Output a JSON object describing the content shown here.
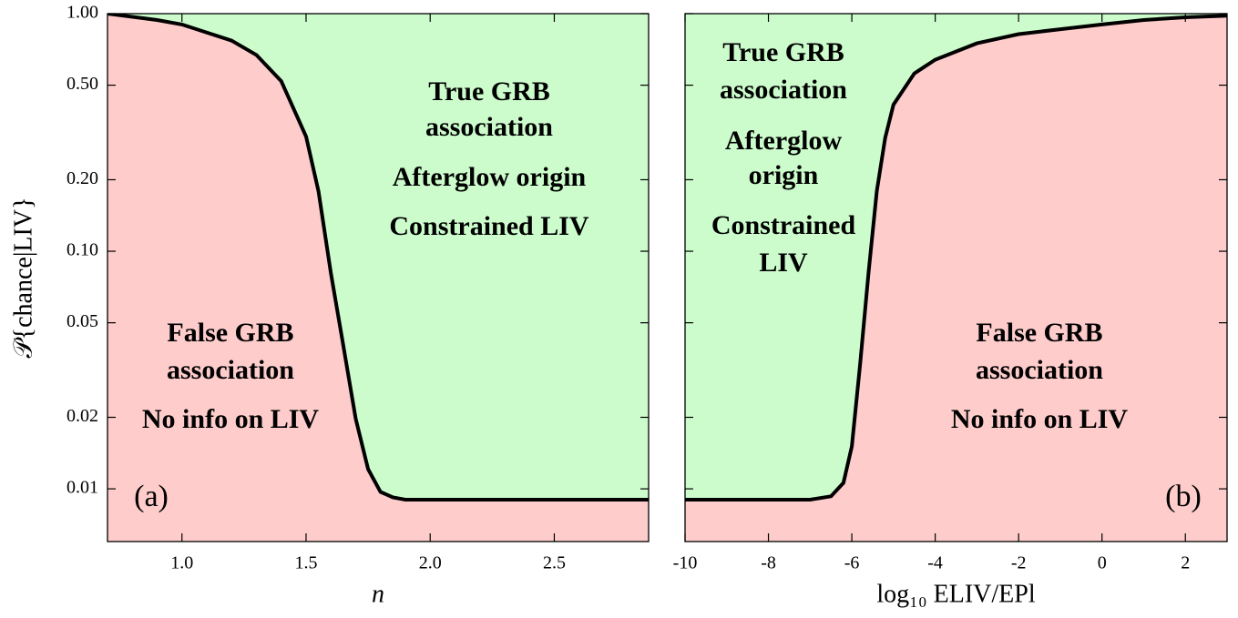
{
  "chart_data": [
    {
      "type": "line",
      "panel_label": "(a)",
      "y_label": "𝒫{chance|LIV}",
      "x_label": "n",
      "log_y": true,
      "xlim": [
        0.7,
        2.88
      ],
      "ylim": [
        0.006,
        1
      ],
      "xticks": [
        {
          "value": 1.0,
          "label": "1.0"
        },
        1.5,
        {
          "value": 2.0,
          "label": "2.0"
        },
        2.5
      ],
      "yticks": [
        0.01,
        0.02,
        0.05,
        {
          "value": 0.1,
          "label": "0.10"
        },
        {
          "value": 0.2,
          "label": "0.20"
        },
        {
          "value": 0.5,
          "label": "0.50"
        },
        {
          "value": 1,
          "label": "1.00"
        }
      ],
      "fill_above": "#ccfccc",
      "fill_below": "#fdcccb",
      "series": [
        {
          "color": "#000000",
          "x": [
            0.7,
            0.9,
            1.0,
            1.2,
            1.3,
            1.4,
            1.5,
            1.55,
            1.6,
            1.65,
            1.7,
            1.75,
            1.8,
            1.85,
            1.9,
            2.2,
            2.88
          ],
          "values": [
            1.0,
            0.94,
            0.9,
            0.77,
            0.67,
            0.52,
            0.304,
            0.179,
            0.081,
            0.04,
            0.0197,
            0.0121,
            0.0097,
            0.0092,
            0.009,
            0.009,
            0.009
          ]
        }
      ],
      "annotations": [
        {
          "lines": [
            "True GRB",
            "association",
            "Afterglow origin",
            "Constrained LIV"
          ]
        },
        {
          "lines": [
            "False GRB",
            "association",
            "No info on LIV"
          ]
        }
      ]
    },
    {
      "type": "line",
      "panel_label": "(b)",
      "x_label": "log₁₀ ELIV/EPl",
      "log_y": true,
      "xlim": [
        -10,
        3
      ],
      "ylim": [
        0.006,
        1
      ],
      "xticks": [
        -10,
        -8,
        -6,
        -4,
        -2,
        0,
        2
      ],
      "yticks": [
        0.01,
        0.02,
        0.05,
        0.1,
        0.2,
        0.5,
        1
      ],
      "fill_above": "#ccfccc",
      "fill_below": "#fdcccb",
      "series": [
        {
          "color": "#000000",
          "x": [
            -10,
            -7,
            -6.5,
            -6.2,
            -6,
            -5.8,
            -5.6,
            -5.4,
            -5.2,
            -5,
            -4.5,
            -4,
            -3,
            -2,
            -1,
            0,
            1,
            2,
            3
          ],
          "values": [
            0.009,
            0.009,
            0.0093,
            0.0106,
            0.0151,
            0.0335,
            0.081,
            0.179,
            0.3,
            0.414,
            0.56,
            0.64,
            0.75,
            0.82,
            0.86,
            0.9,
            0.94,
            0.965,
            0.98
          ]
        }
      ],
      "annotations": [
        {
          "lines": [
            "True GRB",
            "association",
            "Afterglow",
            "origin",
            "Constrained",
            "LIV"
          ]
        },
        {
          "lines": [
            "False GRB",
            "association",
            "No info on LIV"
          ]
        }
      ]
    }
  ]
}
